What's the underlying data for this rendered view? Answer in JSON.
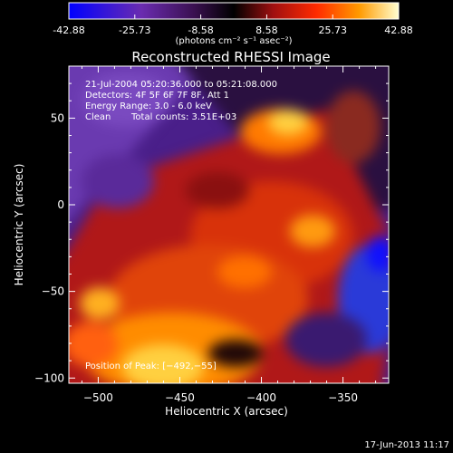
{
  "colorbar": {
    "tick_labels": [
      "-42.88",
      "-25.73",
      "-8.58",
      "8.58",
      "25.73",
      "42.88"
    ],
    "unit_label": "(photons cm⁻² s⁻¹ asec⁻²)",
    "min": -42.88,
    "max": 42.88
  },
  "chart_data": {
    "type": "heatmap",
    "title": "Reconstructed RHESSI Image",
    "xlabel": "Heliocentric X (arcsec)",
    "ylabel": "Heliocentric Y (arcsec)",
    "xlim": [
      -518,
      -322
    ],
    "ylim": [
      -103,
      80
    ],
    "x_ticks": [
      -500,
      -450,
      -400,
      -350
    ],
    "y_ticks": [
      -100,
      -50,
      0,
      50
    ],
    "x_tick_labels": [
      "−500",
      "−450",
      "−400",
      "−350"
    ],
    "y_tick_labels": [
      "−100",
      "−50",
      "0",
      "50"
    ],
    "annotations": [
      "21-Jul-2004 05:20:36.000 to 05:21:08.000",
      "Detectors: 4F 5F 6F 7F 8F, Att 1",
      "Energy Range: 3.0 - 6.0 keV",
      "Clean",
      "Total counts: 3.51E+03"
    ],
    "peak_label": "Position of Peak: [−492,−55]",
    "peak": [
      -492,
      -55
    ],
    "grid": false
  },
  "footer": {
    "timestamp": "17-Jun-2013 11:17"
  }
}
